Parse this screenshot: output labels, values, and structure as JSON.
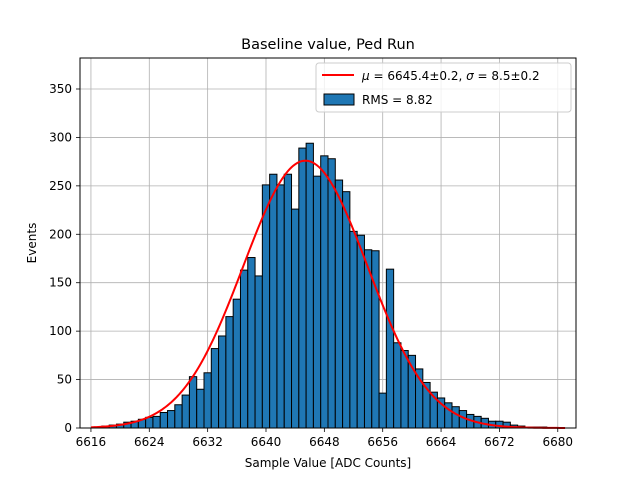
{
  "chart_data": {
    "type": "bar",
    "title": "Baseline value, Ped Run",
    "xlabel": "Sample Value [ADC Counts]",
    "ylabel": "Events",
    "xlim": [
      6614.5,
      6682.5
    ],
    "ylim": [
      0,
      382
    ],
    "xticks": [
      6616,
      6624,
      6632,
      6640,
      6648,
      6656,
      6664,
      6672,
      6680
    ],
    "yticks": [
      0,
      50,
      100,
      150,
      200,
      250,
      300,
      350
    ],
    "grid": true,
    "legend_position": "upper right",
    "colors": {
      "bars": "#1f77b4",
      "bar_edge": "#000000",
      "fit": "#ff0000",
      "grid": "#b0b0b0"
    },
    "bin_width": 1,
    "histogram": {
      "name": "RMS = 8.82",
      "bins": [
        [
          6617,
          1
        ],
        [
          6618,
          2
        ],
        [
          6619,
          3
        ],
        [
          6620,
          4
        ],
        [
          6621,
          6
        ],
        [
          6622,
          7
        ],
        [
          6623,
          9
        ],
        [
          6624,
          11
        ],
        [
          6625,
          12
        ],
        [
          6626,
          16
        ],
        [
          6627,
          18
        ],
        [
          6628,
          24
        ],
        [
          6629,
          34
        ],
        [
          6630,
          53
        ],
        [
          6631,
          40
        ],
        [
          6632,
          57
        ],
        [
          6633,
          82
        ],
        [
          6634,
          95
        ],
        [
          6635,
          115
        ],
        [
          6636,
          133
        ],
        [
          6637,
          163
        ],
        [
          6638,
          176
        ],
        [
          6639,
          157
        ],
        [
          6640,
          251
        ],
        [
          6641,
          262
        ],
        [
          6642,
          251
        ],
        [
          6643,
          262
        ],
        [
          6644,
          226
        ],
        [
          6645,
          289
        ],
        [
          6646,
          294
        ],
        [
          6647,
          260
        ],
        [
          6648,
          281
        ],
        [
          6649,
          278
        ],
        [
          6650,
          256
        ],
        [
          6651,
          244
        ],
        [
          6652,
          203
        ],
        [
          6653,
          199
        ],
        [
          6654,
          184
        ],
        [
          6655,
          183
        ],
        [
          6656,
          36
        ],
        [
          6657,
          164
        ],
        [
          6658,
          88
        ],
        [
          6659,
          80
        ],
        [
          6660,
          75
        ],
        [
          6661,
          61
        ],
        [
          6662,
          47
        ],
        [
          6663,
          37
        ],
        [
          6664,
          31
        ],
        [
          6665,
          26
        ],
        [
          6666,
          22
        ],
        [
          6667,
          18
        ],
        [
          6668,
          14
        ],
        [
          6669,
          12
        ],
        [
          6670,
          10
        ],
        [
          6671,
          7
        ],
        [
          6672,
          7
        ],
        [
          6673,
          6
        ],
        [
          6674,
          3
        ],
        [
          6675,
          2
        ],
        [
          6676,
          1
        ],
        [
          6677,
          1
        ],
        [
          6678,
          1
        ]
      ]
    },
    "fit": {
      "name": "μ = 6645.4±0.2, σ = 8.5±0.2",
      "type": "gaussian",
      "mu": 6645.4,
      "sigma": 8.5,
      "amplitude": 276,
      "x_range": [
        6616,
        6681
      ]
    },
    "legend": {
      "fit_label_parts": {
        "mu_symbol": "μ",
        "mu_text": " = 6645.4±0.2, ",
        "sigma_symbol": "σ",
        "sigma_text": " = 8.5±0.2"
      },
      "hist_label": "RMS = 8.82"
    }
  }
}
